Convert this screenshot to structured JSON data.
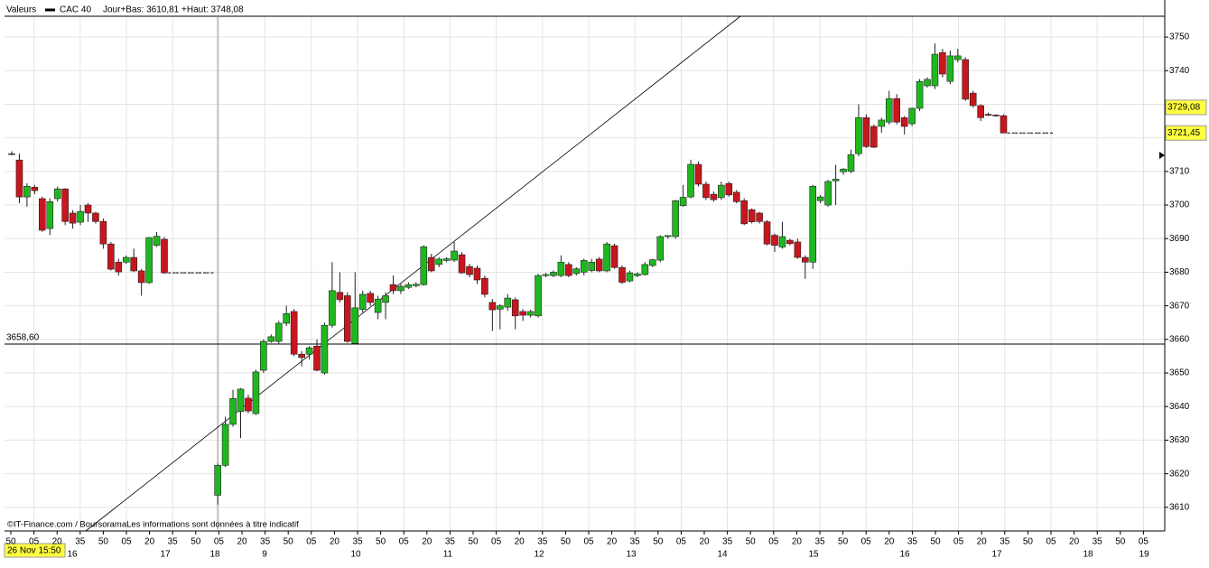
{
  "header": {
    "label": "Valeurs",
    "instrument": "CAC 40",
    "range": "Jour+Bas: 3610,81 +Haut: 3748,08"
  },
  "chart_data": {
    "type": "candlestick",
    "ylim": [
      3602.96,
      3756.2
    ],
    "yticks": [
      3610,
      3620,
      3630,
      3640,
      3650,
      3660,
      3670,
      3680,
      3690,
      3700,
      3710,
      3720,
      3730,
      3740,
      3750
    ],
    "grid": true,
    "up_color": "#1fb71f",
    "down_color": "#c8161d",
    "ohlc": [
      [
        3715.3,
        3716.0,
        3714.8,
        3715.3
      ],
      [
        3713.4,
        3715.3,
        3700.5,
        3702.4
      ],
      [
        3702.4,
        3706.5,
        3699.5,
        3705.6
      ],
      [
        3705.3,
        3706.0,
        3703.2,
        3704.3
      ],
      [
        3701.9,
        3702.5,
        3692.0,
        3692.5
      ],
      [
        3693.0,
        3702.0,
        3691.0,
        3701.0
      ],
      [
        3701.9,
        3705.5,
        3701.0,
        3704.8
      ],
      [
        3704.8,
        3705.0,
        3694.0,
        3695.1
      ],
      [
        3697.6,
        3698.5,
        3693.0,
        3694.6
      ],
      [
        3694.9,
        3700.0,
        3694.0,
        3698.1
      ],
      [
        3700.0,
        3700.6,
        3695.0,
        3697.6
      ],
      [
        3697.6,
        3698.0,
        3694.5,
        3695.1
      ],
      [
        3695.1,
        3696.0,
        3687.0,
        3688.4
      ],
      [
        3688.4,
        3689.0,
        3680.5,
        3680.9
      ],
      [
        3683.0,
        3684.0,
        3679.0,
        3680.1
      ],
      [
        3683.0,
        3685.0,
        3682.5,
        3684.4
      ],
      [
        3684.4,
        3687.0,
        3680.0,
        3680.4
      ],
      [
        3680.4,
        3681.0,
        3673.0,
        3676.9
      ],
      [
        3676.9,
        3690.5,
        3676.5,
        3690.3
      ],
      [
        3688.0,
        3692.0,
        3687.5,
        3690.7
      ],
      [
        3689.8,
        3690.5,
        3679.5,
        3679.8
      ],
      null,
      null,
      null,
      null,
      null,
      null,
      [
        3613.6,
        3623.0,
        3610.8,
        3622.5
      ],
      [
        3622.5,
        3637.0,
        3622.0,
        3634.7
      ],
      [
        3634.7,
        3645.0,
        3634.0,
        3642.4
      ],
      [
        3638.5,
        3645.5,
        3630.6,
        3645.2
      ],
      [
        3642.5,
        3643.5,
        3638.0,
        3638.7
      ],
      [
        3637.9,
        3651.0,
        3637.5,
        3650.3
      ],
      [
        3650.8,
        3660.0,
        3650.0,
        3659.4
      ],
      [
        3659.4,
        3661.5,
        3659.0,
        3660.8
      ],
      [
        3659.4,
        3665.5,
        3658.5,
        3664.8
      ],
      [
        3664.8,
        3670.0,
        3664.0,
        3667.7
      ],
      [
        3668.3,
        3669.0,
        3655.0,
        3655.6
      ],
      [
        3655.6,
        3656.5,
        3652.0,
        3654.6
      ],
      [
        3655.6,
        3658.0,
        3654.0,
        3657.5
      ],
      [
        3658.0,
        3660.0,
        3650.5,
        3650.8
      ],
      [
        3650.0,
        3665.0,
        3649.5,
        3664.2
      ],
      [
        3664.2,
        3683.0,
        3663.5,
        3674.5
      ],
      [
        3674.0,
        3680.0,
        3671.0,
        3671.8
      ],
      [
        3673.0,
        3674.0,
        3659.0,
        3659.4
      ],
      [
        3658.8,
        3680.0,
        3658.5,
        3669.4
      ],
      [
        3668.9,
        3674.5,
        3668.0,
        3673.4
      ],
      [
        3673.7,
        3674.5,
        3670.0,
        3671.0
      ],
      [
        3668.0,
        3673.0,
        3666.0,
        3672.0
      ],
      [
        3671.0,
        3674.0,
        3666.0,
        3673.0
      ],
      [
        3676.3,
        3679.0,
        3673.5,
        3674.5
      ],
      [
        3674.5,
        3676.5,
        3673.5,
        3675.8
      ],
      [
        3675.5,
        3677.0,
        3675.0,
        3676.3
      ],
      [
        3676.0,
        3677.0,
        3675.5,
        3676.4
      ],
      [
        3676.3,
        3688.0,
        3676.0,
        3687.6
      ],
      [
        3684.4,
        3685.5,
        3680.0,
        3680.4
      ],
      [
        3682.3,
        3684.5,
        3681.5,
        3683.9
      ],
      [
        3683.5,
        3684.5,
        3683.0,
        3684.0
      ],
      [
        3683.6,
        3689.0,
        3683.0,
        3686.3
      ],
      [
        3685.2,
        3686.0,
        3679.5,
        3679.8
      ],
      [
        3681.7,
        3682.5,
        3678.5,
        3679.3
      ],
      [
        3681.2,
        3682.0,
        3676.5,
        3677.7
      ],
      [
        3678.2,
        3679.0,
        3672.5,
        3673.4
      ],
      [
        3671.0,
        3672.0,
        3662.5,
        3668.8
      ],
      [
        3669.0,
        3670.5,
        3663.0,
        3670.0
      ],
      [
        3669.6,
        3673.5,
        3668.5,
        3672.3
      ],
      [
        3671.8,
        3672.5,
        3663.0,
        3667.0
      ],
      [
        3668.3,
        3669.0,
        3665.5,
        3667.2
      ],
      [
        3667.2,
        3668.8,
        3666.5,
        3668.3
      ],
      [
        3667.0,
        3679.5,
        3666.5,
        3679.0
      ],
      [
        3679.0,
        3679.8,
        3678.5,
        3679.3
      ],
      [
        3679.0,
        3680.5,
        3678.5,
        3680.0
      ],
      [
        3679.0,
        3685.0,
        3678.5,
        3683.0
      ],
      [
        3682.3,
        3683.0,
        3678.5,
        3679.0
      ],
      [
        3679.6,
        3681.5,
        3679.0,
        3681.0
      ],
      [
        3680.0,
        3684.0,
        3679.0,
        3683.5
      ],
      [
        3680.5,
        3684.0,
        3680.0,
        3683.0
      ],
      [
        3683.9,
        3684.5,
        3680.0,
        3680.4
      ],
      [
        3680.4,
        3689.0,
        3680.0,
        3688.4
      ],
      [
        3687.9,
        3688.5,
        3681.0,
        3681.4
      ],
      [
        3681.4,
        3682.0,
        3676.5,
        3677.0
      ],
      [
        3677.4,
        3680.5,
        3677.0,
        3679.8
      ],
      [
        3679.0,
        3680.0,
        3678.5,
        3679.5
      ],
      [
        3679.3,
        3683.0,
        3679.0,
        3682.3
      ],
      [
        3682.0,
        3684.0,
        3681.5,
        3683.7
      ],
      [
        3683.6,
        3691.0,
        3683.0,
        3690.6
      ],
      [
        3690.6,
        3691.0,
        3690.0,
        3690.9
      ],
      [
        3690.6,
        3701.5,
        3690.0,
        3701.3
      ],
      [
        3699.8,
        3706.0,
        3699.5,
        3702.3
      ],
      [
        3702.4,
        3713.5,
        3702.0,
        3712.1
      ],
      [
        3712.1,
        3713.0,
        3705.5,
        3706.2
      ],
      [
        3706.2,
        3707.0,
        3701.5,
        3702.2
      ],
      [
        3703.2,
        3704.0,
        3701.0,
        3701.6
      ],
      [
        3702.2,
        3707.0,
        3701.5,
        3705.9
      ],
      [
        3706.4,
        3707.0,
        3702.5,
        3703.0
      ],
      [
        3703.8,
        3704.5,
        3700.5,
        3701.0
      ],
      [
        3701.3,
        3702.0,
        3694.0,
        3694.4
      ],
      [
        3698.6,
        3699.0,
        3694.5,
        3695.0
      ],
      [
        3697.6,
        3698.0,
        3694.5,
        3695.1
      ],
      [
        3695.0,
        3695.5,
        3688.0,
        3688.4
      ],
      [
        3691.0,
        3691.5,
        3686.0,
        3688.0
      ],
      [
        3687.5,
        3695.0,
        3687.0,
        3690.6
      ],
      [
        3689.5,
        3690.0,
        3688.0,
        3688.5
      ],
      [
        3689.0,
        3690.0,
        3684.0,
        3684.4
      ],
      [
        3684.4,
        3685.0,
        3678.0,
        3683.0
      ],
      [
        3683.0,
        3706.0,
        3681.0,
        3705.6
      ],
      [
        3701.3,
        3703.0,
        3700.5,
        3702.4
      ],
      [
        3700.0,
        3707.5,
        3699.5,
        3707.0
      ],
      [
        3707.2,
        3712.0,
        3700.0,
        3707.7
      ],
      [
        3709.9,
        3711.0,
        3709.0,
        3710.7
      ],
      [
        3710.0,
        3716.5,
        3709.5,
        3715.0
      ],
      [
        3715.3,
        3730.0,
        3714.5,
        3726.0
      ],
      [
        3726.0,
        3727.0,
        3717.0,
        3717.4
      ],
      [
        3723.4,
        3724.0,
        3717.0,
        3717.2
      ],
      [
        3723.4,
        3726.0,
        3721.5,
        3725.3
      ],
      [
        3724.7,
        3734.0,
        3724.0,
        3731.7
      ],
      [
        3731.7,
        3733.0,
        3724.0,
        3724.7
      ],
      [
        3726.0,
        3726.5,
        3721.0,
        3723.4
      ],
      [
        3724.2,
        3729.0,
        3723.5,
        3728.8
      ],
      [
        3728.8,
        3737.5,
        3728.0,
        3736.8
      ],
      [
        3735.5,
        3738.0,
        3735.0,
        3737.4
      ],
      [
        3735.5,
        3748.1,
        3734.5,
        3744.9
      ],
      [
        3745.4,
        3746.5,
        3738.0,
        3739.0
      ],
      [
        3736.8,
        3746.0,
        3736.0,
        3744.4
      ],
      [
        3743.3,
        3746.5,
        3742.5,
        3744.4
      ],
      [
        3743.3,
        3744.0,
        3731.0,
        3731.5
      ],
      [
        3733.3,
        3734.0,
        3729.0,
        3729.6
      ],
      [
        3729.6,
        3730.0,
        3725.0,
        3726.0
      ],
      [
        3727.0,
        3727.5,
        3726.5,
        3726.8
      ],
      [
        3726.8,
        3727.0,
        3726.3,
        3726.6
      ],
      [
        3726.6,
        3727.0,
        3721.45,
        3721.45
      ],
      null,
      null,
      null,
      null,
      null,
      null
    ],
    "time_labels": [
      "50",
      "05",
      "20",
      "35",
      "50",
      "05",
      "20",
      "35",
      "50",
      "05",
      "20",
      "35",
      "50",
      "05",
      "20",
      "35",
      "50",
      "05",
      "20",
      "35",
      "50",
      "05",
      "20",
      "35",
      "50",
      "05",
      "20",
      "35",
      "50",
      "05",
      "20",
      "35",
      "50",
      "05",
      "20",
      "35",
      "50",
      "05",
      "20",
      "35",
      "50",
      "05",
      "20",
      "35",
      "50",
      "05",
      "20",
      "35",
      "50",
      "05"
    ],
    "day_labels": [
      "16",
      "17",
      "18",
      "9",
      "10",
      "11",
      "12",
      "13",
      "14",
      "15",
      "16",
      "17",
      "18",
      "19"
    ],
    "reference_line": {
      "value": 3658.6,
      "label": "3658,60"
    },
    "price_tags": [
      {
        "value": 3729.08,
        "label": "3729,08"
      },
      {
        "value": 3721.45,
        "label": "3721,45"
      }
    ]
  },
  "footer": {
    "source": "©IT-Finance.com / BoursoramaLes informations sont données à titre indicatif",
    "cursor_date": "26 Nov 15:50"
  }
}
